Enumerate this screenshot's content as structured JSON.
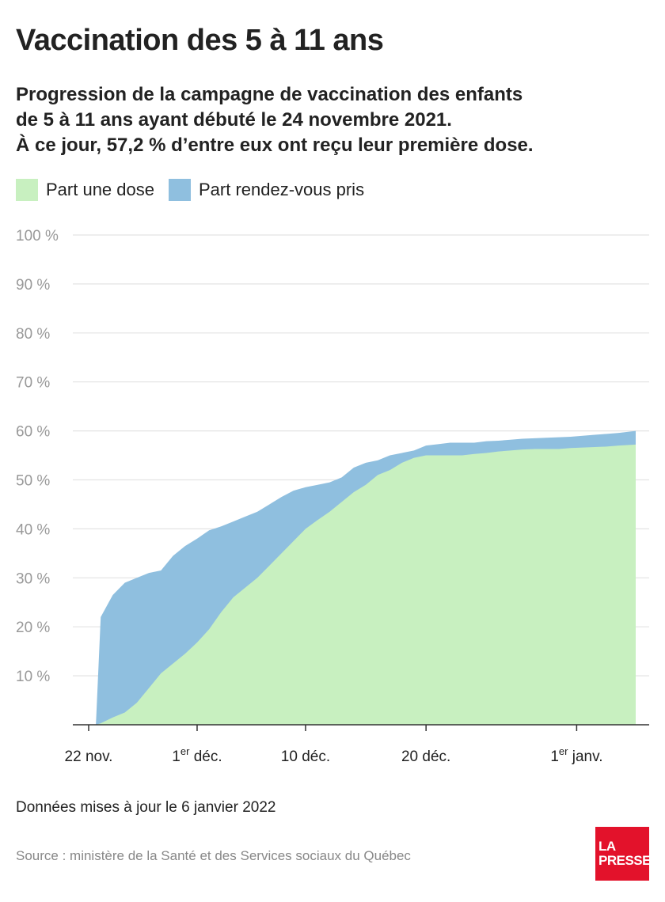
{
  "header": {
    "title": "Vaccination des 5 à 11 ans",
    "subtitle_lines": [
      "Progression de la campagne de vaccination des enfants",
      "de 5 à 11 ans ayant débuté le 24 novembre 2021.",
      "À ce jour, 57,2 % d’entre eux ont reçu leur première dose."
    ]
  },
  "legend": [
    {
      "label": "Part une dose",
      "color": "#c8f0c0"
    },
    {
      "label": "Part rendez-vous pris",
      "color": "#8fbfdf"
    }
  ],
  "chart_data": {
    "type": "area",
    "title": "",
    "xlabel": "",
    "ylabel": "",
    "ylim": [
      0,
      100
    ],
    "y_ticks": [
      10,
      20,
      30,
      40,
      50,
      60,
      70,
      80,
      90,
      100
    ],
    "y_tick_suffix": " %",
    "x_ticks": [
      {
        "day": 0,
        "text": "22 nov.",
        "sup": ""
      },
      {
        "day": 9,
        "text": " déc.",
        "sup": "er",
        "prefix": "1"
      },
      {
        "day": 18,
        "text": "10 déc.",
        "sup": ""
      },
      {
        "day": 28,
        "text": "20 déc.",
        "sup": ""
      },
      {
        "day": 40.5,
        "text": " janv.",
        "sup": "er",
        "prefix": "1"
      }
    ],
    "x_note": "x values are day offsets from 22 nov.",
    "x": [
      0,
      0.6,
      1,
      2,
      3,
      4,
      5,
      6,
      7,
      8,
      9,
      10,
      11,
      12,
      13,
      14,
      15,
      16,
      17,
      18,
      19,
      20,
      21,
      22,
      23,
      24,
      25,
      26,
      27,
      28,
      29,
      30,
      31,
      32,
      33,
      34,
      35,
      36,
      37,
      38,
      39,
      40,
      41,
      42,
      43,
      44,
      45.4
    ],
    "grid": true,
    "series": [
      {
        "name": "Part une dose",
        "color": "#c8f0c0",
        "values": [
          0,
          0,
          0.3,
          1.5,
          2.5,
          4.5,
          7.5,
          10.5,
          12.5,
          14.5,
          16.8,
          19.5,
          23,
          26,
          28,
          30,
          32.5,
          35,
          37.5,
          40,
          41.8,
          43.5,
          45.5,
          47.5,
          49,
          51,
          52,
          53.5,
          54.5,
          55,
          55,
          55,
          55,
          55.3,
          55.5,
          55.8,
          56,
          56.2,
          56.3,
          56.3,
          56.3,
          56.5,
          56.6,
          56.7,
          56.8,
          57,
          57.2
        ]
      },
      {
        "name": "Part rendez-vous pris",
        "color": "#8fbfdf",
        "values": [
          0,
          0,
          22,
          26.5,
          29,
          30,
          31,
          31.5,
          34.5,
          36.5,
          38,
          39.7,
          40.5,
          41.5,
          42.5,
          43.5,
          45,
          46.5,
          47.8,
          48.5,
          49,
          49.5,
          50.5,
          52.5,
          53.5,
          54,
          55,
          55.5,
          56,
          57,
          57.3,
          57.6,
          57.6,
          57.6,
          57.9,
          58,
          58.2,
          58.4,
          58.5,
          58.6,
          58.7,
          58.8,
          59,
          59.2,
          59.4,
          59.6,
          60
        ]
      }
    ]
  },
  "footer": {
    "updated": "Données mises à jour le 6 janvier 2022",
    "source": "Source : ministère de la Santé et des Services sociaux du Québec",
    "logo_line1": "LA",
    "logo_line2": "PRESSE"
  }
}
